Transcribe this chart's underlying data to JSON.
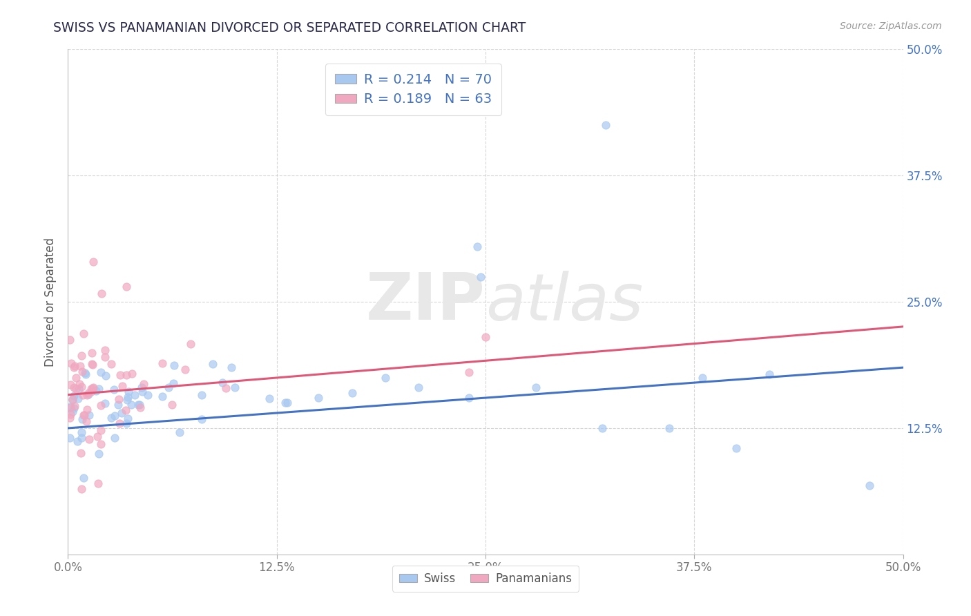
{
  "title": "SWISS VS PANAMANIAN DIVORCED OR SEPARATED CORRELATION CHART",
  "source": "Source: ZipAtlas.com",
  "ylabel": "Divorced or Separated",
  "xlim": [
    0.0,
    0.5
  ],
  "ylim": [
    0.0,
    0.5
  ],
  "xtick_labels": [
    "0.0%",
    "12.5%",
    "25.0%",
    "37.5%",
    "50.0%"
  ],
  "xtick_vals": [
    0.0,
    0.125,
    0.25,
    0.375,
    0.5
  ],
  "ytick_labels": [
    "12.5%",
    "25.0%",
    "37.5%",
    "50.0%"
  ],
  "ytick_vals": [
    0.125,
    0.25,
    0.375,
    0.5
  ],
  "swiss_color": "#a8c8f0",
  "panama_color": "#f0a8c0",
  "swiss_line_color": "#4472c4",
  "panama_line_color": "#e05878",
  "swiss_R": 0.214,
  "swiss_N": 70,
  "panama_R": 0.189,
  "panama_N": 63,
  "legend_label_swiss": "Swiss",
  "legend_label_panama": "Panamanians",
  "watermark_zip": "ZIP",
  "watermark_atlas": "atlas",
  "background_color": "#ffffff",
  "grid_color": "#cccccc",
  "title_color": "#2a2a4a",
  "right_label_color": "#4472c4",
  "legend_text_color": "#4472c4"
}
